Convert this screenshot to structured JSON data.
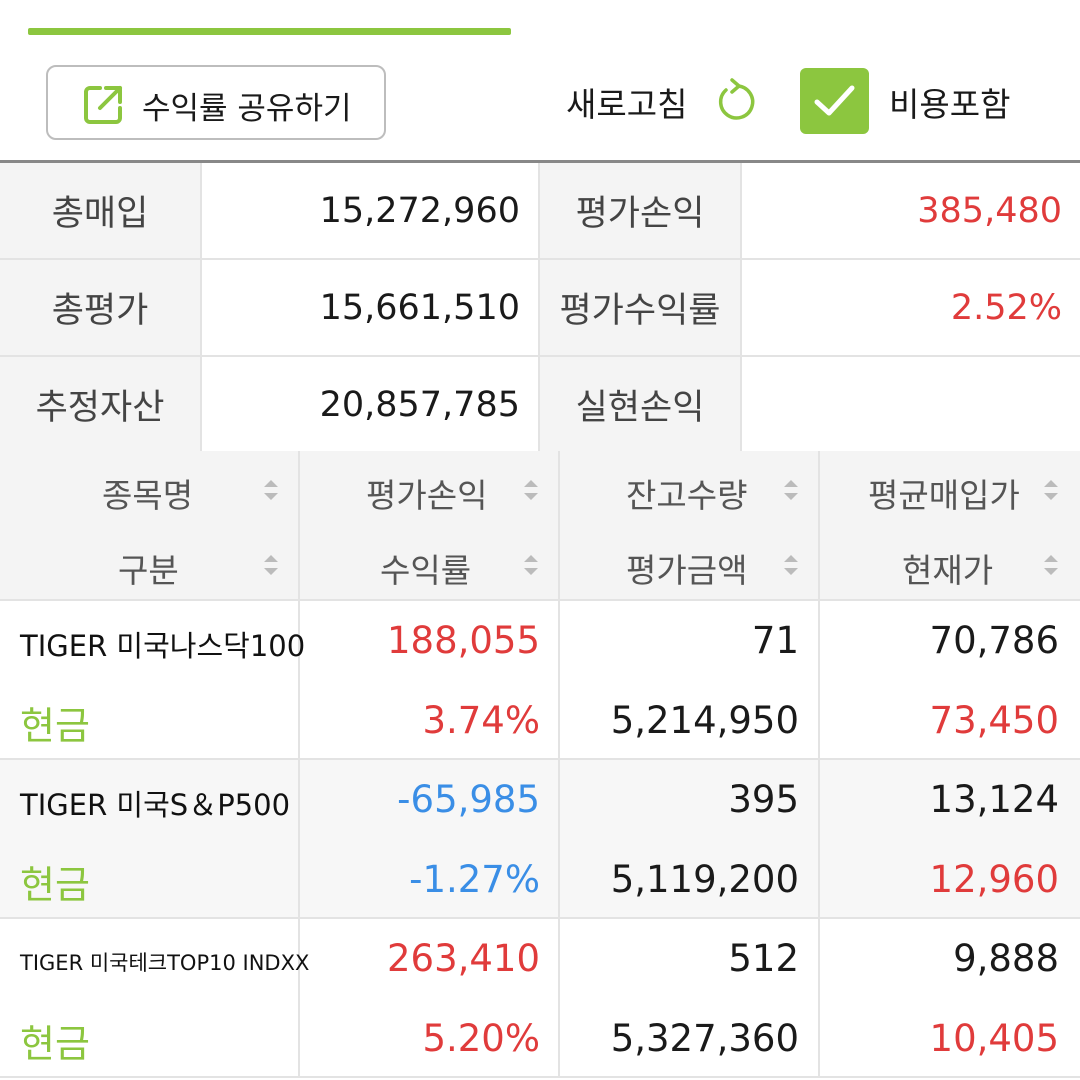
{
  "toolbar": {
    "share_label": "수익률 공유하기",
    "refresh_label": "새로고침",
    "cost_label": "비용포함",
    "cost_checked": true
  },
  "colors": {
    "accent": "#8cc63f",
    "profit": "#e03b3b",
    "loss": "#3a8ee6"
  },
  "summary": [
    {
      "label1": "총매입",
      "value1": "15,272,960",
      "label2": "평가손익",
      "value2": "385,480"
    },
    {
      "label1": "총평가",
      "value1": "15,661,510",
      "label2": "평가수익률",
      "value2": "2.52%"
    },
    {
      "label1": "추정자산",
      "value1": "20,857,785",
      "label2": "실현손익",
      "value2": ""
    }
  ],
  "columns": {
    "row1": [
      "종목명",
      "평가손익",
      "잔고수량",
      "평균매입가"
    ],
    "row2": [
      "구분",
      "수익률",
      "평가금액",
      "현재가"
    ]
  },
  "holdings": [
    {
      "name": "TIGER 미국나스닥100",
      "category": "현금",
      "pnl": "188,055",
      "rate": "3.74%",
      "qty": "71",
      "eval": "5,214,950",
      "avg_price": "70,786",
      "cur_price": "73,450"
    },
    {
      "name": "TIGER 미국S＆P500",
      "category": "현금",
      "pnl": "-65,985",
      "rate": "-1.27%",
      "qty": "395",
      "eval": "5,119,200",
      "avg_price": "13,124",
      "cur_price": "12,960"
    },
    {
      "name": "TIGER 미국테크TOP10 INDXX",
      "category": "현금",
      "pnl": "263,410",
      "rate": "5.20%",
      "qty": "512",
      "eval": "5,327,360",
      "avg_price": "9,888",
      "cur_price": "10,405"
    }
  ]
}
